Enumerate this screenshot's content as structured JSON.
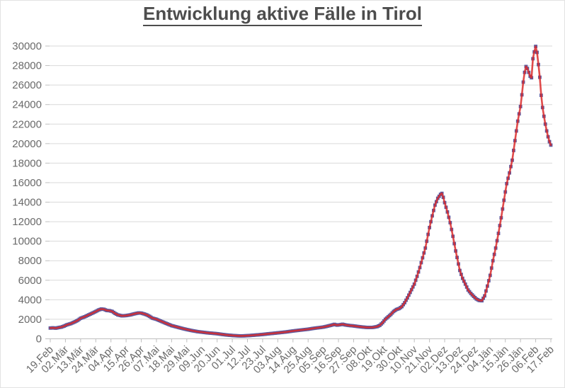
{
  "chart_data": {
    "type": "line",
    "title": "Entwicklung aktive Fälle in Tirol",
    "xlabel": "",
    "ylabel": "",
    "ylim": [
      0,
      30000
    ],
    "y_tick_step": 2000,
    "y_tick_labels": [
      "0",
      "2000",
      "4000",
      "6000",
      "8000",
      "10000",
      "12000",
      "14000",
      "16000",
      "18000",
      "20000",
      "22000",
      "24000",
      "26000",
      "28000",
      "30000"
    ],
    "x_tick_labels": [
      "19.Feb",
      "02.Mär",
      "13.Mär",
      "24.Mär",
      "04.Apr",
      "15.Apr",
      "26.Apr",
      "07.Mai",
      "18.Mai",
      "29.Mai",
      "09.Jun",
      "20.Jun",
      "01.Jul",
      "12.Jul",
      "23.Jul",
      "03.Aug",
      "14.Aug",
      "25.Aug",
      "05.Sep",
      "16.Sep",
      "27.Sep",
      "08.Okt",
      "19.Okt",
      "30.Okt",
      "10.Nov",
      "21.Nov",
      "02.Dez",
      "13.Dez",
      "24.Dez",
      "04.Jän",
      "15.Jän",
      "26.Jän",
      "06.Feb",
      "17.Feb"
    ],
    "x_tick_interval_days": 11,
    "x_total_days": 363,
    "grid": true,
    "legend": "none",
    "series": [
      {
        "marker_shape": "square",
        "marker_color": "#5b5aa0",
        "line_color": "#da2b2b",
        "points_day_value": [
          [
            0,
            1100
          ],
          [
            2,
            1120
          ],
          [
            4,
            1090
          ],
          [
            6,
            1150
          ],
          [
            8,
            1200
          ],
          [
            10,
            1300
          ],
          [
            12,
            1430
          ],
          [
            15,
            1560
          ],
          [
            18,
            1750
          ],
          [
            20,
            1900
          ],
          [
            22,
            2100
          ],
          [
            25,
            2260
          ],
          [
            28,
            2460
          ],
          [
            31,
            2660
          ],
          [
            33,
            2800
          ],
          [
            35,
            2950
          ],
          [
            37,
            3050
          ],
          [
            39,
            3020
          ],
          [
            41,
            2900
          ],
          [
            43,
            2880
          ],
          [
            45,
            2800
          ],
          [
            47,
            2600
          ],
          [
            49,
            2450
          ],
          [
            52,
            2350
          ],
          [
            55,
            2380
          ],
          [
            58,
            2450
          ],
          [
            61,
            2560
          ],
          [
            64,
            2650
          ],
          [
            66,
            2630
          ],
          [
            68,
            2550
          ],
          [
            70,
            2450
          ],
          [
            72,
            2300
          ],
          [
            74,
            2120
          ],
          [
            77,
            2000
          ],
          [
            80,
            1820
          ],
          [
            84,
            1580
          ],
          [
            88,
            1350
          ],
          [
            92,
            1200
          ],
          [
            96,
            1050
          ],
          [
            99,
            950
          ],
          [
            103,
            830
          ],
          [
            107,
            730
          ],
          [
            110,
            680
          ],
          [
            114,
            610
          ],
          [
            118,
            560
          ],
          [
            121,
            520
          ],
          [
            124,
            460
          ],
          [
            128,
            390
          ],
          [
            132,
            340
          ],
          [
            135,
            310
          ],
          [
            138,
            295
          ],
          [
            141,
            305
          ],
          [
            143,
            320
          ],
          [
            146,
            350
          ],
          [
            149,
            385
          ],
          [
            152,
            420
          ],
          [
            155,
            460
          ],
          [
            158,
            510
          ],
          [
            161,
            550
          ],
          [
            165,
            610
          ],
          [
            168,
            655
          ],
          [
            171,
            700
          ],
          [
            174,
            760
          ],
          [
            176,
            800
          ],
          [
            179,
            850
          ],
          [
            182,
            900
          ],
          [
            185,
            950
          ],
          [
            187,
            980
          ],
          [
            190,
            1050
          ],
          [
            193,
            1110
          ],
          [
            196,
            1160
          ],
          [
            198,
            1200
          ],
          [
            200,
            1260
          ],
          [
            202,
            1330
          ],
          [
            204,
            1400
          ],
          [
            206,
            1480
          ],
          [
            208,
            1400
          ],
          [
            210,
            1440
          ],
          [
            212,
            1490
          ],
          [
            214,
            1420
          ],
          [
            217,
            1360
          ],
          [
            220,
            1320
          ],
          [
            223,
            1260
          ],
          [
            226,
            1210
          ],
          [
            229,
            1170
          ],
          [
            231,
            1160
          ],
          [
            234,
            1170
          ],
          [
            237,
            1250
          ],
          [
            239,
            1380
          ],
          [
            241,
            1650
          ],
          [
            243,
            2000
          ],
          [
            245,
            2250
          ],
          [
            247,
            2500
          ],
          [
            249,
            2800
          ],
          [
            251,
            3000
          ],
          [
            253,
            3100
          ],
          [
            255,
            3300
          ],
          [
            257,
            3700
          ],
          [
            259,
            4200
          ],
          [
            261,
            4750
          ],
          [
            264,
            5600
          ],
          [
            266,
            6400
          ],
          [
            268,
            7300
          ],
          [
            270,
            8300
          ],
          [
            272,
            9300
          ],
          [
            275,
            11400
          ],
          [
            277,
            12600
          ],
          [
            279,
            13700
          ],
          [
            281,
            14400
          ],
          [
            283,
            14800
          ],
          [
            284,
            14900
          ],
          [
            285,
            14500
          ],
          [
            286,
            13950
          ],
          [
            288,
            13000
          ],
          [
            290,
            11900
          ],
          [
            292,
            10500
          ],
          [
            294,
            9000
          ],
          [
            297,
            7000
          ],
          [
            299,
            6200
          ],
          [
            301,
            5600
          ],
          [
            303,
            5000
          ],
          [
            305,
            4650
          ],
          [
            307,
            4350
          ],
          [
            309,
            4080
          ],
          [
            311,
            3930
          ],
          [
            313,
            3900
          ],
          [
            315,
            4400
          ],
          [
            317,
            5400
          ],
          [
            319,
            6500
          ],
          [
            321,
            8000
          ],
          [
            323,
            9300
          ],
          [
            325,
            10800
          ],
          [
            327,
            12400
          ],
          [
            329,
            14200
          ],
          [
            331,
            15900
          ],
          [
            333,
            17000
          ],
          [
            335,
            18300
          ],
          [
            337,
            20300
          ],
          [
            339,
            22300
          ],
          [
            341,
            23800
          ],
          [
            342,
            25000
          ],
          [
            343,
            26300
          ],
          [
            344,
            27300
          ],
          [
            345,
            27900
          ],
          [
            346,
            27700
          ],
          [
            347,
            27300
          ],
          [
            348,
            26900
          ],
          [
            349,
            26750
          ],
          [
            350,
            28700
          ],
          [
            351,
            29400
          ],
          [
            352,
            29960
          ],
          [
            353,
            29350
          ],
          [
            354,
            28100
          ],
          [
            355,
            26800
          ],
          [
            356,
            24950
          ],
          [
            357,
            23700
          ],
          [
            358,
            22800
          ],
          [
            359,
            22000
          ],
          [
            360,
            21300
          ],
          [
            361,
            20700
          ],
          [
            362,
            20200
          ],
          [
            363,
            19850
          ]
        ]
      }
    ],
    "colors": {
      "grid": "#d9d9d9",
      "axis": "#bfbfbf",
      "tick_label": "#6a6a6a",
      "title": "#4d4d4d"
    }
  }
}
